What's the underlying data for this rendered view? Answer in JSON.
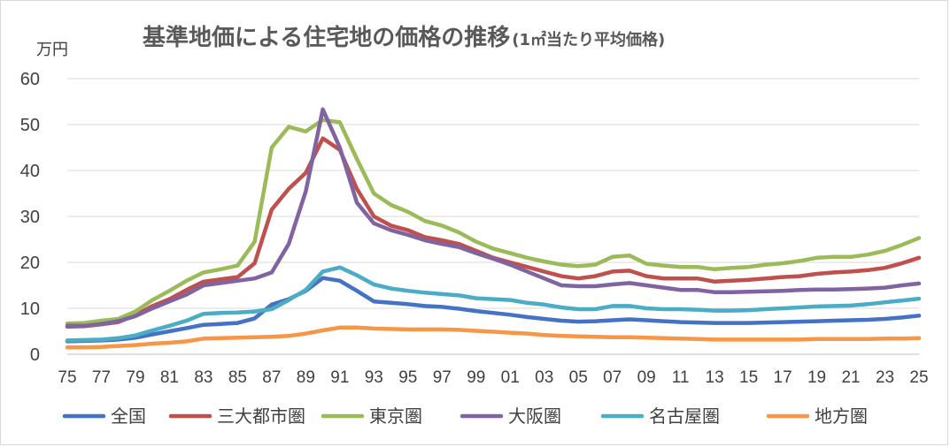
{
  "chart_data": {
    "type": "line",
    "title": "基準地価による住宅地の価格の推移",
    "subtitle": "(1㎡当たり平均価格)",
    "ylabel": "万円",
    "xlabel": "",
    "ylim": [
      0,
      60
    ],
    "yticks": [
      0,
      10,
      20,
      30,
      40,
      50,
      60
    ],
    "grid": true,
    "legend": "bottom",
    "x": [
      "75",
      "76",
      "77",
      "78",
      "79",
      "80",
      "81",
      "82",
      "83",
      "84",
      "85",
      "86",
      "87",
      "88",
      "89",
      "90",
      "91",
      "92",
      "93",
      "94",
      "95",
      "96",
      "97",
      "98",
      "99",
      "00",
      "01",
      "02",
      "03",
      "04",
      "05",
      "06",
      "07",
      "08",
      "09",
      "10",
      "11",
      "12",
      "13",
      "14",
      "15",
      "16",
      "17",
      "18",
      "19",
      "20",
      "21",
      "22",
      "23",
      "24",
      "25"
    ],
    "x_tick_labels": [
      "75",
      "77",
      "79",
      "81",
      "83",
      "85",
      "87",
      "89",
      "91",
      "93",
      "95",
      "97",
      "99",
      "01",
      "03",
      "05",
      "07",
      "09",
      "11",
      "13",
      "15",
      "17",
      "19",
      "21",
      "23",
      "25"
    ],
    "series": [
      {
        "name": "全国",
        "color": "#4472C4",
        "values": [
          2.8,
          2.9,
          3.0,
          3.2,
          3.6,
          4.3,
          5.0,
          5.7,
          6.4,
          6.6,
          6.8,
          7.8,
          10.8,
          12.0,
          13.8,
          16.6,
          16.0,
          13.8,
          11.5,
          11.2,
          10.9,
          10.5,
          10.3,
          9.9,
          9.4,
          9.0,
          8.6,
          8.1,
          7.7,
          7.3,
          7.1,
          7.2,
          7.4,
          7.6,
          7.4,
          7.2,
          7.0,
          6.9,
          6.8,
          6.8,
          6.8,
          6.9,
          7.0,
          7.1,
          7.2,
          7.3,
          7.4,
          7.5,
          7.7,
          8.0,
          8.4
        ]
      },
      {
        "name": "三大都市圏",
        "color": "#C0504D",
        "values": [
          6.0,
          6.1,
          6.5,
          7.0,
          8.5,
          10.5,
          12.0,
          14.0,
          15.8,
          16.3,
          16.8,
          19.8,
          31.5,
          36.0,
          39.5,
          47.0,
          44.5,
          36.0,
          30.0,
          28.0,
          27.0,
          25.5,
          24.8,
          24.0,
          22.5,
          21.0,
          20.0,
          19.0,
          18.0,
          17.0,
          16.5,
          17.0,
          18.0,
          18.2,
          17.0,
          16.5,
          16.5,
          16.5,
          15.8,
          16.0,
          16.2,
          16.5,
          16.8,
          17.0,
          17.5,
          17.8,
          18.0,
          18.3,
          18.8,
          19.8,
          21.0
        ]
      },
      {
        "name": "東京圏",
        "color": "#9BBB59",
        "values": [
          6.7,
          6.8,
          7.3,
          7.7,
          9.3,
          11.8,
          13.8,
          16.0,
          17.8,
          18.5,
          19.3,
          24.5,
          45.0,
          49.5,
          48.5,
          51.0,
          50.5,
          42.5,
          35.0,
          32.5,
          31.0,
          29.0,
          28.0,
          26.5,
          24.5,
          23.0,
          22.0,
          21.0,
          20.2,
          19.5,
          19.2,
          19.5,
          21.2,
          21.5,
          19.7,
          19.3,
          19.0,
          19.0,
          18.5,
          18.8,
          19.0,
          19.5,
          19.8,
          20.3,
          21.0,
          21.2,
          21.2,
          21.7,
          22.5,
          23.8,
          25.3
        ]
      },
      {
        "name": "大阪圏",
        "color": "#8064A2",
        "values": [
          6.2,
          6.2,
          6.6,
          7.2,
          8.3,
          10.0,
          11.5,
          13.0,
          15.0,
          15.5,
          16.0,
          16.5,
          17.8,
          24.0,
          35.5,
          53.3,
          45.0,
          33.0,
          28.5,
          27.0,
          26.0,
          24.8,
          24.0,
          23.3,
          22.0,
          20.8,
          19.5,
          18.0,
          16.5,
          15.0,
          14.8,
          14.8,
          15.2,
          15.5,
          15.0,
          14.5,
          14.0,
          14.0,
          13.5,
          13.5,
          13.6,
          13.7,
          13.8,
          14.0,
          14.1,
          14.1,
          14.2,
          14.3,
          14.5,
          15.0,
          15.4
        ]
      },
      {
        "name": "名古屋圏",
        "color": "#4BACC6",
        "values": [
          3.0,
          3.1,
          3.2,
          3.5,
          4.1,
          5.2,
          6.2,
          7.3,
          8.8,
          9.0,
          9.1,
          9.3,
          9.8,
          11.8,
          14.0,
          18.0,
          18.9,
          17.2,
          15.2,
          14.3,
          13.8,
          13.4,
          13.1,
          12.8,
          12.2,
          12.0,
          11.8,
          11.2,
          10.8,
          10.2,
          9.8,
          9.8,
          10.5,
          10.5,
          10.0,
          9.8,
          9.8,
          9.7,
          9.5,
          9.5,
          9.6,
          9.8,
          10.0,
          10.2,
          10.4,
          10.5,
          10.6,
          10.9,
          11.3,
          11.7,
          12.1
        ]
      },
      {
        "name": "地方圏",
        "color": "#F79646",
        "values": [
          1.5,
          1.5,
          1.6,
          1.8,
          2.0,
          2.3,
          2.5,
          2.8,
          3.4,
          3.5,
          3.6,
          3.7,
          3.8,
          4.0,
          4.5,
          5.2,
          5.8,
          5.8,
          5.6,
          5.5,
          5.4,
          5.4,
          5.4,
          5.3,
          5.1,
          4.9,
          4.7,
          4.5,
          4.2,
          4.0,
          3.9,
          3.8,
          3.7,
          3.7,
          3.6,
          3.5,
          3.4,
          3.3,
          3.2,
          3.2,
          3.2,
          3.2,
          3.2,
          3.2,
          3.3,
          3.3,
          3.3,
          3.3,
          3.4,
          3.4,
          3.5
        ]
      }
    ]
  }
}
